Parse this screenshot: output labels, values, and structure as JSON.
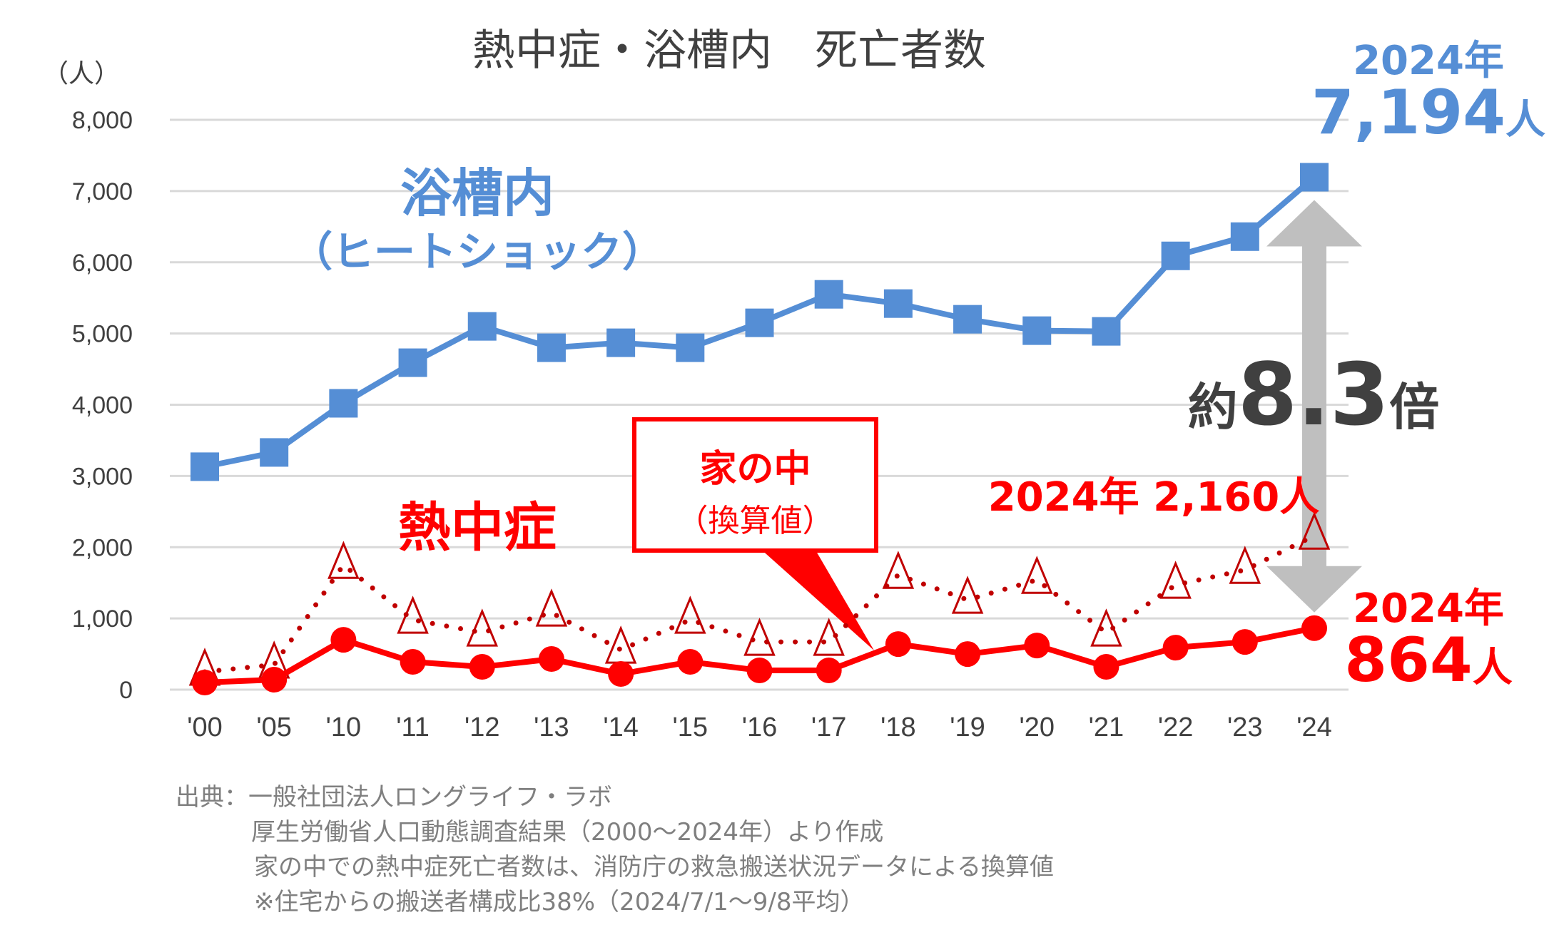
{
  "chart_data": {
    "type": "line",
    "title": "熱中症・浴槽内　死亡者数",
    "ylabel": "（人）",
    "ylim": [
      0,
      8000
    ],
    "yticks": [
      "0",
      "1,000",
      "2,000",
      "3,000",
      "4,000",
      "5,000",
      "6,000",
      "7,000",
      "8,000"
    ],
    "ytick_values": [
      0,
      1000,
      2000,
      3000,
      4000,
      5000,
      6000,
      7000,
      8000
    ],
    "grid": true,
    "categories": [
      "'00",
      "'05",
      "'10",
      "'11",
      "'12",
      "'13",
      "'14",
      "'15",
      "'16",
      "'17",
      "'18",
      "'19",
      "'20",
      "'21",
      "'22",
      "'23",
      "'24"
    ],
    "series": [
      {
        "name": "浴槽内（ヒートショック）",
        "color": "#558ED5",
        "marker": "square",
        "style": "solid",
        "values": [
          3130,
          3330,
          4020,
          4590,
          5100,
          4800,
          4870,
          4800,
          5150,
          5550,
          5420,
          5200,
          5040,
          5030,
          6090,
          6360,
          7194
        ]
      },
      {
        "name": "熱中症",
        "color": "#FF0000",
        "marker": "circle",
        "style": "solid",
        "values": [
          100,
          140,
          700,
          390,
          320,
          430,
          220,
          390,
          270,
          270,
          640,
          500,
          620,
          320,
          590,
          670,
          864
        ]
      },
      {
        "name": "家の中（換算値）",
        "color": "#C00000",
        "marker": "triangle",
        "style": "dotted",
        "values": [
          250,
          350,
          1750,
          980,
          800,
          1080,
          560,
          980,
          670,
          670,
          1610,
          1260,
          1540,
          800,
          1470,
          1680,
          2160
        ]
      }
    ]
  },
  "labels": {
    "bath_title": "浴槽内",
    "bath_subtitle": "（ヒートショック）",
    "heat_title": "熱中症",
    "callout_title": "家の中",
    "callout_sub": "（換算値）",
    "bath_2024_year": "2024年",
    "bath_2024_value": "7,194",
    "bath_2024_unit": "人",
    "ratio_prefix": "約",
    "ratio_value": "8.3",
    "ratio_suffix": "倍",
    "home_2024": "2024年 2,160人",
    "heat_2024_year": "2024年",
    "heat_2024_value": "864",
    "heat_2024_unit": "人"
  },
  "footnotes": [
    "出典：一般社団法人ロングライフ・ラボ",
    "厚生労働省人口動態調査結果（2000～2024年）より作成",
    "家の中での熱中症死亡者数は、消防庁の救急搬送状況データによる換算値",
    "※住宅からの搬送者構成比38%（2024/7/1～9/8平均）"
  ],
  "colors": {
    "blue": "#558ED5",
    "red": "#FF0000",
    "darkred": "#C00000",
    "grid": "#D9D9D9",
    "text": "#404040",
    "arrow": "#BFBFBF"
  }
}
